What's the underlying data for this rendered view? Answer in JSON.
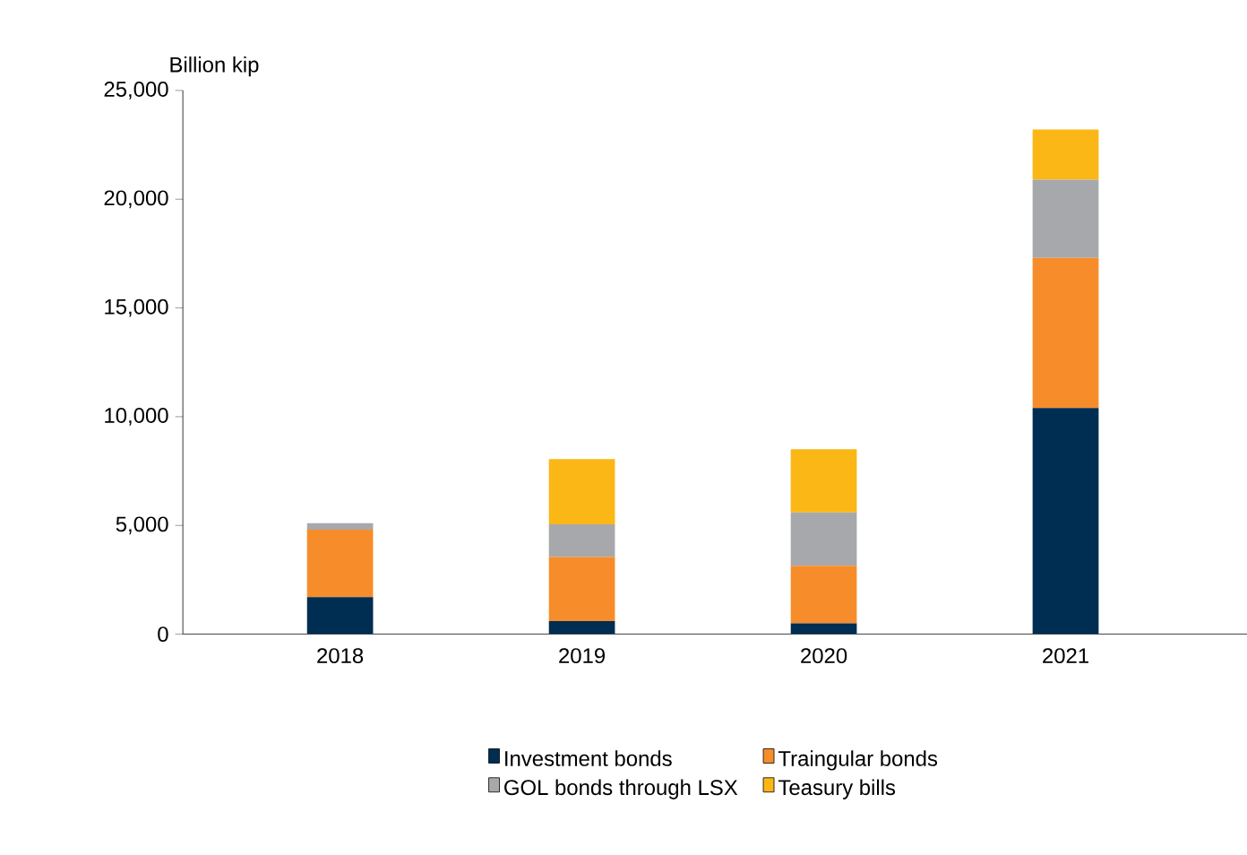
{
  "chart_data": {
    "type": "bar",
    "stacked": true,
    "ylabel": "Billion kip",
    "categories": [
      "2018",
      "2019",
      "2020",
      "2021"
    ],
    "series": [
      {
        "name": "Investment bonds",
        "color": "#002d52",
        "values": [
          1700,
          600,
          500,
          10400
        ]
      },
      {
        "name": "Traingular bonds",
        "color": "#f68d2a",
        "values": [
          3100,
          2950,
          2650,
          6900
        ]
      },
      {
        "name": "GOL bonds through LSX",
        "color": "#a7a8ab",
        "values": [
          300,
          1500,
          2450,
          3600
        ]
      },
      {
        "name": "Teasury bills",
        "color": "#fbb715",
        "values": [
          0,
          3000,
          2900,
          2300
        ]
      }
    ],
    "ylim": [
      0,
      25000
    ],
    "yticks": [
      {
        "value": 0,
        "label": "0"
      },
      {
        "value": 5000,
        "label": "5,000"
      },
      {
        "value": 10000,
        "label": "10,000"
      },
      {
        "value": 15000,
        "label": "15,000"
      },
      {
        "value": 20000,
        "label": "20,000"
      },
      {
        "value": 25000,
        "label": "25,000"
      }
    ],
    "legend": "bottom",
    "grid": false
  }
}
